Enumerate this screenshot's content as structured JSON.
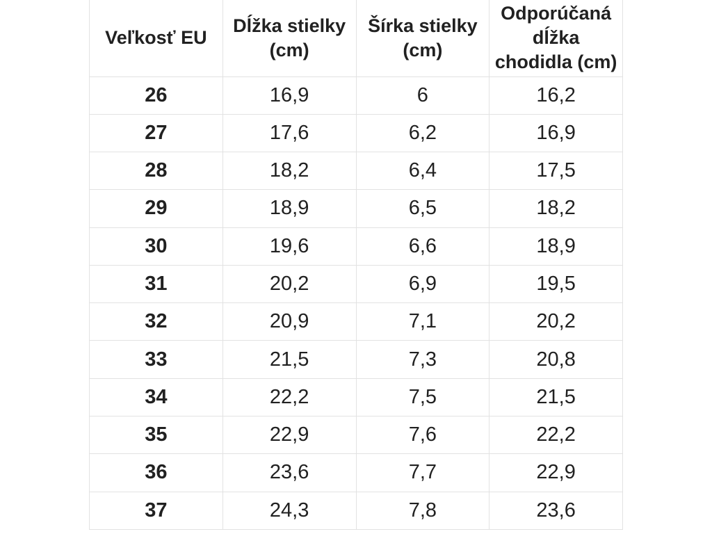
{
  "colors": {
    "text": "#212121",
    "border": "#e2e2e2",
    "background": "#ffffff"
  },
  "chart_data": {
    "type": "table",
    "title": "",
    "columns": [
      {
        "id": "size",
        "label": "Veľkosť EU",
        "lines": [
          "Veľkosť EU"
        ]
      },
      {
        "id": "length",
        "label": "Dĺžka stielky (cm)",
        "lines": [
          "Dĺžka stielky",
          "(cm)"
        ]
      },
      {
        "id": "width",
        "label": "Šírka stielky (cm)",
        "lines": [
          "Šírka stielky",
          "(cm)"
        ]
      },
      {
        "id": "foot",
        "label": "Odporúčaná dĺžka chodidla (cm)",
        "lines": [
          "Odporúčaná",
          "dĺžka",
          "chodidla (cm)"
        ]
      }
    ],
    "rows": [
      {
        "size": "26",
        "length": "16,9",
        "width": "6",
        "foot": "16,2"
      },
      {
        "size": "27",
        "length": "17,6",
        "width": "6,2",
        "foot": "16,9"
      },
      {
        "size": "28",
        "length": "18,2",
        "width": "6,4",
        "foot": "17,5"
      },
      {
        "size": "29",
        "length": "18,9",
        "width": "6,5",
        "foot": "18,2"
      },
      {
        "size": "30",
        "length": "19,6",
        "width": "6,6",
        "foot": "18,9"
      },
      {
        "size": "31",
        "length": "20,2",
        "width": "6,9",
        "foot": "19,5"
      },
      {
        "size": "32",
        "length": "20,9",
        "width": "7,1",
        "foot": "20,2"
      },
      {
        "size": "33",
        "length": "21,5",
        "width": "7,3",
        "foot": "20,8"
      },
      {
        "size": "34",
        "length": "22,2",
        "width": "7,5",
        "foot": "21,5"
      },
      {
        "size": "35",
        "length": "22,9",
        "width": "7,6",
        "foot": "22,2"
      },
      {
        "size": "36",
        "length": "23,6",
        "width": "7,7",
        "foot": "22,9"
      },
      {
        "size": "37",
        "length": "24,3",
        "width": "7,8",
        "foot": "23,6"
      }
    ]
  }
}
